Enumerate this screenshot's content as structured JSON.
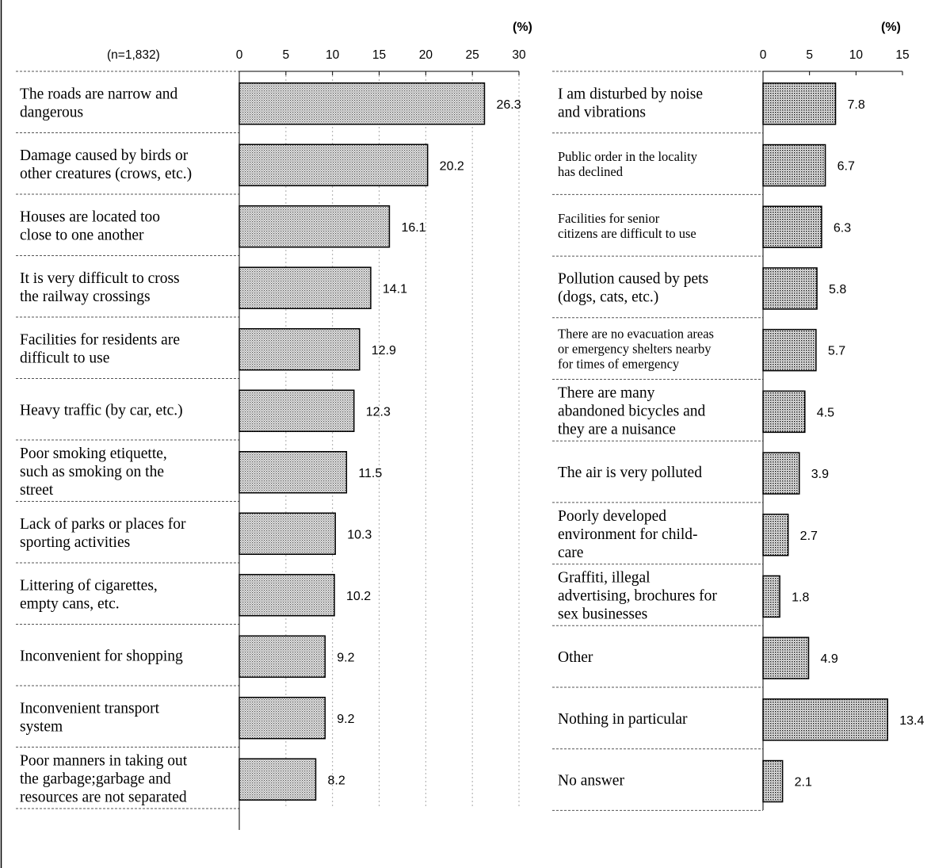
{
  "chart_data": [
    {
      "type": "bar",
      "orientation": "horizontal",
      "sample_note": "(n=1,832)",
      "unit_label": "(%)",
      "xlim": [
        0,
        30
      ],
      "ticks": [
        "0",
        "5",
        "10",
        "15",
        "20",
        "25",
        "30"
      ],
      "categories": [
        [
          "The roads are narrow and",
          "dangerous"
        ],
        [
          "Damage caused by birds or",
          "other creatures (crows, etc.)"
        ],
        [
          "Houses are located too",
          "close to one another"
        ],
        [
          "It is very difficult to cross",
          "the railway crossings"
        ],
        [
          "Facilities for residents are",
          "difficult to use"
        ],
        [
          "Heavy traffic (by car, etc.)"
        ],
        [
          "Poor smoking etiquette,",
          "such as smoking on the",
          "street"
        ],
        [
          "Lack of parks or places for",
          "sporting activities"
        ],
        [
          "Littering of cigarettes,",
          "empty cans, etc."
        ],
        [
          "Inconvenient for shopping"
        ],
        [
          "Inconvenient transport",
          "system"
        ],
        [
          "Poor manners in taking out",
          "the garbage;garbage and",
          "resources are not separated"
        ]
      ],
      "values": [
        26.3,
        20.2,
        16.1,
        14.1,
        12.9,
        12.3,
        11.5,
        10.3,
        10.2,
        9.2,
        9.2,
        8.2
      ],
      "value_labels": [
        "26.3",
        "20.2",
        "16.1",
        "14.1",
        "12.9",
        "12.3",
        "11.5",
        "10.3",
        "10.2",
        "9.2",
        "9.2",
        "8.2"
      ],
      "grid": "dotted-vertical"
    },
    {
      "type": "bar",
      "orientation": "horizontal",
      "unit_label": "(%)",
      "xlim": [
        0,
        15
      ],
      "ticks": [
        "0",
        "5",
        "10",
        "15"
      ],
      "categories": [
        [
          "I am disturbed by noise",
          "and vibrations"
        ],
        [
          "Public order in the locality",
          "has declined"
        ],
        [
          "Facilities for senior",
          "citizens are difficult to use"
        ],
        [
          "Pollution caused by pets",
          "(dogs, cats, etc.)"
        ],
        [
          "There are no evacuation areas",
          "or emergency shelters nearby",
          "for times of emergency"
        ],
        [
          "There are many",
          "abandoned bicycles and",
          "they are a nuisance"
        ],
        [
          "The air is very polluted"
        ],
        [
          "Poorly developed",
          "environment for child-",
          "care"
        ],
        [
          "Graffiti, illegal",
          "advertising, brochures for",
          "sex businesses"
        ],
        [
          "Other"
        ],
        [
          "Nothing in particular"
        ],
        [
          "No answer"
        ]
      ],
      "values": [
        7.8,
        6.7,
        6.3,
        5.8,
        5.7,
        4.5,
        3.9,
        2.7,
        1.8,
        4.9,
        13.4,
        2.1
      ],
      "value_labels": [
        "7.8",
        "6.7",
        "6.3",
        "5.8",
        "5.7",
        "4.5",
        "3.9",
        "2.7",
        "1.8",
        "4.9",
        "13.4",
        "2.1"
      ],
      "grid": "none"
    }
  ]
}
